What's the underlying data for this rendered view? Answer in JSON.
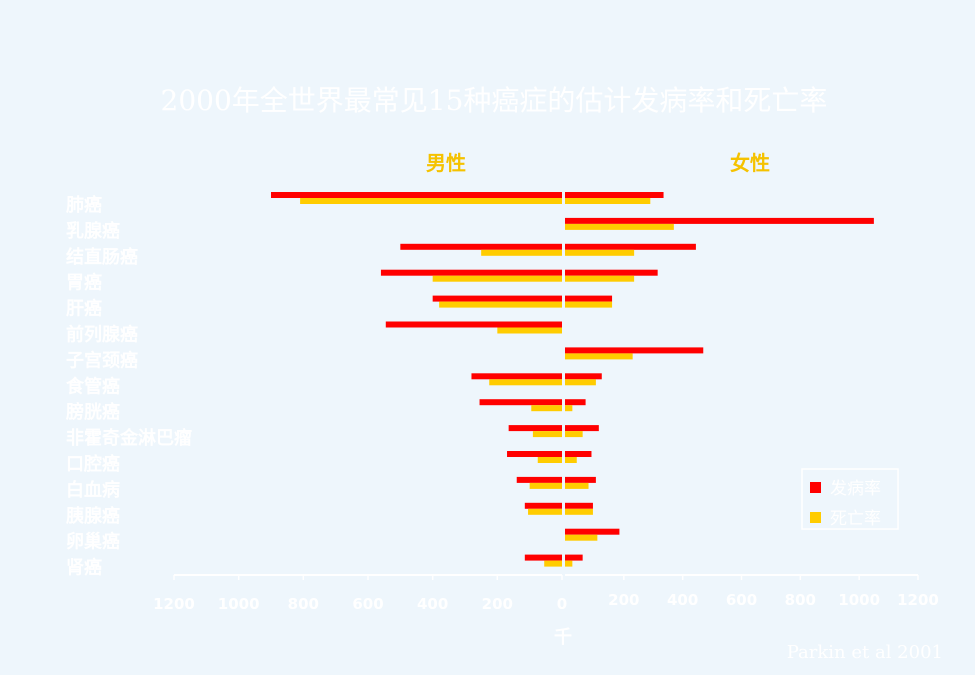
{
  "chart_data": {
    "type": "bar",
    "title": "2000年全世界最常见15种癌症的估计发病率和死亡率",
    "panels": {
      "left": "男性",
      "right": "女性"
    },
    "categories": [
      "肺癌",
      "乳腺癌",
      "结直肠癌",
      "胃癌",
      "肝癌",
      "前列腺癌",
      "子宫颈癌",
      "食管癌",
      "膀胱癌",
      "非霍奇金淋巴瘤",
      "口腔癌",
      "白血病",
      "胰腺癌",
      "卵巢癌",
      "肾癌"
    ],
    "series": [
      {
        "name": "发病率",
        "color": "#ff0000",
        "male": [
          900,
          0,
          500,
          560,
          400,
          545,
          0,
          280,
          255,
          165,
          170,
          140,
          115,
          0,
          115
        ],
        "female": [
          335,
          1050,
          445,
          315,
          160,
          0,
          470,
          125,
          70,
          115,
          90,
          105,
          95,
          185,
          60
        ]
      },
      {
        "name": "死亡率",
        "color": "#ffcc00",
        "male": [
          810,
          0,
          250,
          400,
          380,
          200,
          0,
          225,
          95,
          90,
          75,
          100,
          105,
          0,
          55
        ],
        "female": [
          290,
          370,
          235,
          235,
          160,
          0,
          230,
          105,
          25,
          60,
          40,
          80,
          95,
          110,
          25
        ]
      }
    ],
    "xlim": [
      -1200,
      1200
    ],
    "xticks": [
      "1200",
      "1000",
      "800",
      "600",
      "400",
      "200",
      "0",
      "200",
      "400",
      "600",
      "800",
      "1000",
      "1200"
    ],
    "xlabel": "千",
    "legend_position": "bottom-right",
    "source": "Parkin et al 2001"
  }
}
